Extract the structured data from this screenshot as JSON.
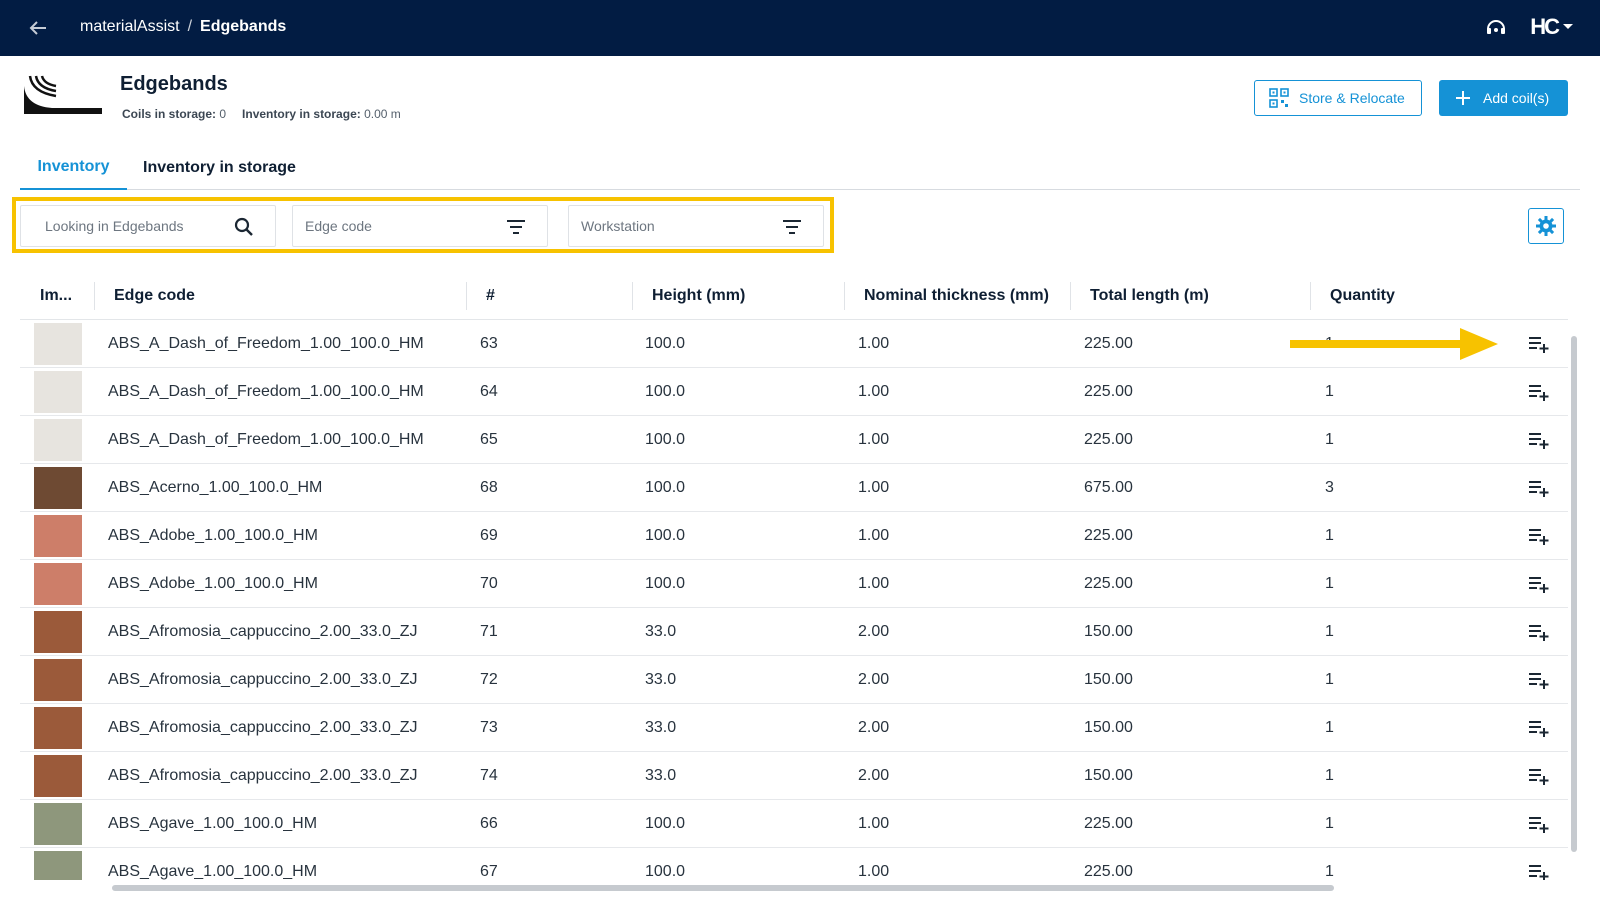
{
  "app": {
    "name": "materialAssist",
    "separator": "/",
    "current_page": "Edgebands",
    "logo_text": "HC"
  },
  "header": {
    "title": "Edgebands",
    "coils_label": "Coils in storage:",
    "coils_value": "0",
    "inventory_label": "Inventory in storage:",
    "inventory_value": "0.00 m",
    "store_button": "Store & Relocate",
    "add_button": "Add coil(s)"
  },
  "tabs": [
    {
      "label": "Inventory",
      "active": true
    },
    {
      "label": "Inventory in storage",
      "active": false
    }
  ],
  "filters": {
    "search_placeholder": "Looking in Edgebands",
    "edge_code_placeholder": "Edge code",
    "workstation_placeholder": "Workstation"
  },
  "colors": {
    "topbar": "#021c43",
    "accent": "#1592d6",
    "highlight": "#f7c200"
  },
  "table": {
    "columns": [
      "Im...",
      "Edge code",
      "#",
      "Height (mm)",
      "Nominal thickness (mm)",
      "Total length (m)",
      "Quantity"
    ],
    "rows": [
      {
        "swatch": "#e7e4df",
        "code": "ABS_A_Dash_of_Freedom_1.00_100.0_HM",
        "num": "63",
        "height": "100.0",
        "thickness": "1.00",
        "length": "225.00",
        "qty": "1"
      },
      {
        "swatch": "#e7e4df",
        "code": "ABS_A_Dash_of_Freedom_1.00_100.0_HM",
        "num": "64",
        "height": "100.0",
        "thickness": "1.00",
        "length": "225.00",
        "qty": "1"
      },
      {
        "swatch": "#e7e4df",
        "code": "ABS_A_Dash_of_Freedom_1.00_100.0_HM",
        "num": "65",
        "height": "100.0",
        "thickness": "1.00",
        "length": "225.00",
        "qty": "1"
      },
      {
        "swatch": "#6e4a33",
        "code": "ABS_Acerno_1.00_100.0_HM",
        "num": "68",
        "height": "100.0",
        "thickness": "1.00",
        "length": "675.00",
        "qty": "3"
      },
      {
        "swatch": "#cd7e69",
        "code": "ABS_Adobe_1.00_100.0_HM",
        "num": "69",
        "height": "100.0",
        "thickness": "1.00",
        "length": "225.00",
        "qty": "1"
      },
      {
        "swatch": "#cd7e69",
        "code": "ABS_Adobe_1.00_100.0_HM",
        "num": "70",
        "height": "100.0",
        "thickness": "1.00",
        "length": "225.00",
        "qty": "1"
      },
      {
        "swatch": "#9b5a3a",
        "code": "ABS_Afromosia_cappuccino_2.00_33.0_ZJ",
        "num": "71",
        "height": "33.0",
        "thickness": "2.00",
        "length": "150.00",
        "qty": "1"
      },
      {
        "swatch": "#9b5a3a",
        "code": "ABS_Afromosia_cappuccino_2.00_33.0_ZJ",
        "num": "72",
        "height": "33.0",
        "thickness": "2.00",
        "length": "150.00",
        "qty": "1"
      },
      {
        "swatch": "#9b5a3a",
        "code": "ABS_Afromosia_cappuccino_2.00_33.0_ZJ",
        "num": "73",
        "height": "33.0",
        "thickness": "2.00",
        "length": "150.00",
        "qty": "1"
      },
      {
        "swatch": "#9b5a3a",
        "code": "ABS_Afromosia_cappuccino_2.00_33.0_ZJ",
        "num": "74",
        "height": "33.0",
        "thickness": "2.00",
        "length": "150.00",
        "qty": "1"
      },
      {
        "swatch": "#8e977c",
        "code": "ABS_Agave_1.00_100.0_HM",
        "num": "66",
        "height": "100.0",
        "thickness": "1.00",
        "length": "225.00",
        "qty": "1"
      },
      {
        "swatch": "#8e977c",
        "code": "ABS_Agave_1.00_100.0_HM",
        "num": "67",
        "height": "100.0",
        "thickness": "1.00",
        "length": "225.00",
        "qty": "1"
      }
    ]
  }
}
